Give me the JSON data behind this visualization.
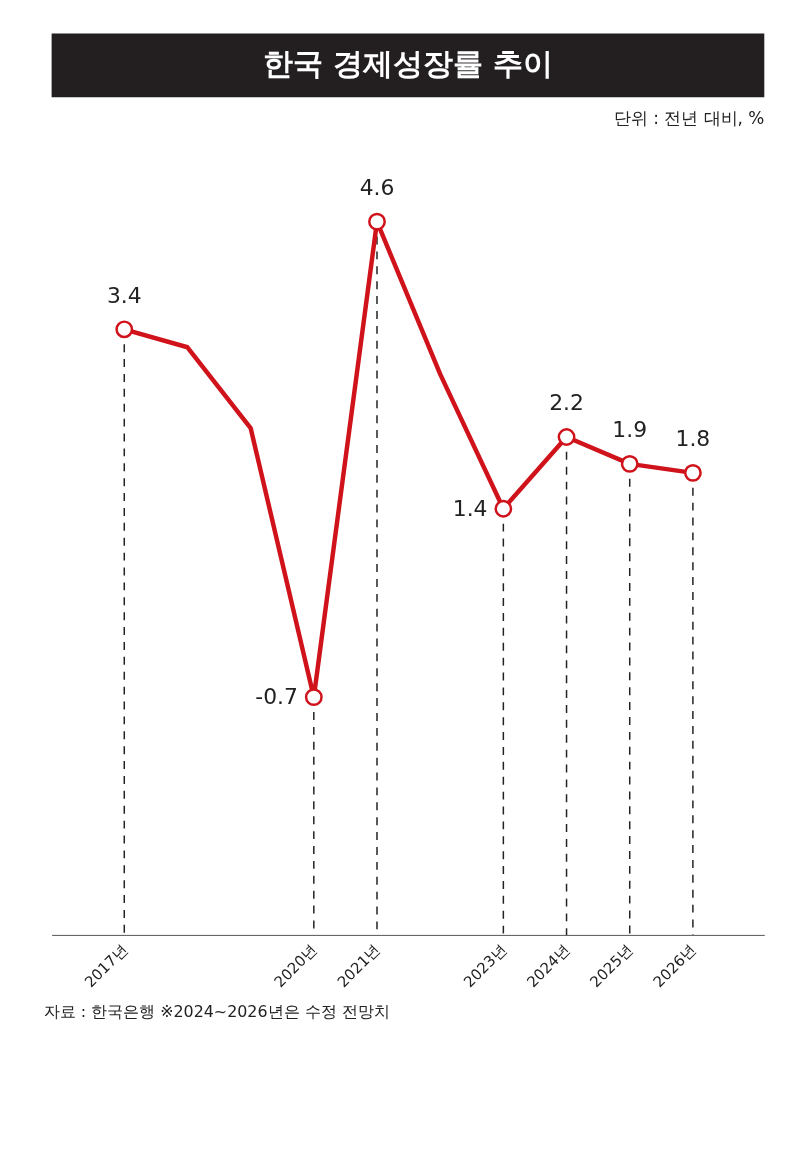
{
  "chart_data": {
    "type": "line",
    "title": "한국 경제성장률 추이",
    "subtitle": "단위 : 전년 대비, %",
    "x": [
      2017,
      2018,
      2019,
      2020,
      2021,
      2022,
      2023,
      2024,
      2025,
      2026
    ],
    "series": [
      {
        "color": "#d0121b",
        "values": [
          3.4,
          3.2,
          2.3,
          -0.7,
          4.6,
          2.9,
          1.4,
          2.2,
          1.9,
          1.8
        ],
        "value_labels": [
          "3.4",
          null,
          null,
          "-0.7",
          "4.6",
          null,
          "1.4",
          "2.2",
          "1.9",
          "1.8"
        ]
      }
    ],
    "xlim": [
      2015.85,
      2027.13
    ],
    "xticks": [
      {
        "value": 2017,
        "label": "2017년"
      },
      {
        "value": 2020,
        "label": "2020년"
      },
      {
        "value": 2021,
        "label": "2021년"
      },
      {
        "value": 2023,
        "label": "2023년"
      },
      {
        "value": 2024,
        "label": "2024년"
      },
      {
        "value": 2025,
        "label": "2025년"
      },
      {
        "value": 2026,
        "label": "2026년"
      }
    ],
    "tick_labels": "x",
    "grid": "x",
    "line_style": "solid",
    "annotations": [
      "자료 : 한국은행 ※2024~2026년은 수정 전망치"
    ]
  }
}
